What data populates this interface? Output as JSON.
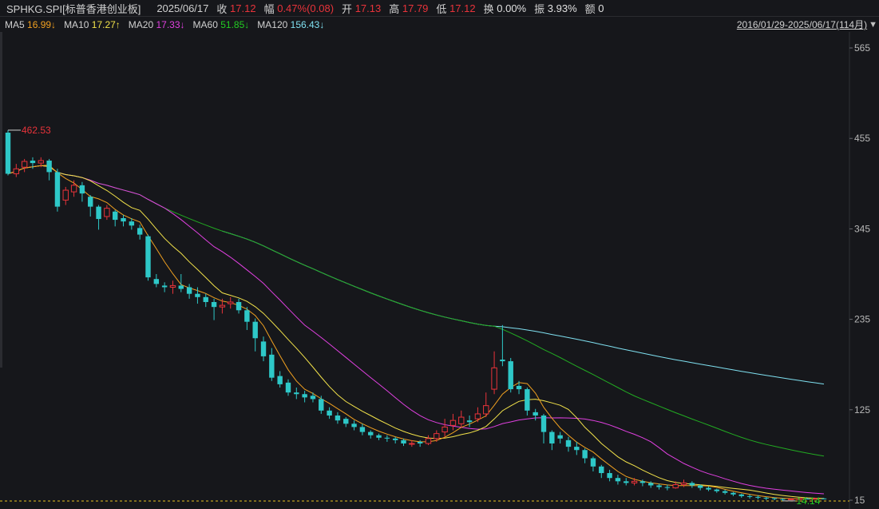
{
  "quote": {
    "symbol": "SPHKG.SPI[标普香港创业板]",
    "date": "2025/06/17",
    "close_label": "收",
    "close": "17.12",
    "change_label": "幅",
    "change": "0.47%(0.08)",
    "open_label": "开",
    "open": "17.13",
    "high_label": "高",
    "high": "17.79",
    "low_label": "低",
    "low": "17.12",
    "turnover_label": "换",
    "turnover": "0.00%",
    "amplitude_label": "振",
    "amplitude": "3.93%",
    "amount_label": "额",
    "amount": "0"
  },
  "ma": [
    {
      "label": "MA5",
      "value": "16.99↓",
      "color": "#f0a020"
    },
    {
      "label": "MA10",
      "value": "17.27↑",
      "color": "#f2e24a"
    },
    {
      "label": "MA20",
      "value": "17.33↓",
      "color": "#e040e0"
    },
    {
      "label": "MA60",
      "value": "51.85↓",
      "color": "#22cc22"
    },
    {
      "label": "MA120",
      "value": "156.43↓",
      "color": "#7fe0f0"
    }
  ],
  "range": {
    "text": "2016/01/29-2025/06/17(114月)",
    "dropdown_icon": "triangle-down-icon"
  },
  "colors": {
    "up": "#e8333a",
    "down": "#2ec8c8",
    "ma5": "#f0a020",
    "ma10": "#f2e24a",
    "ma20": "#e040e0",
    "ma60": "#22aa22",
    "ma120": "#7fe0f0",
    "ref_line": "#e8c020"
  },
  "chart_data": {
    "type": "candlestick",
    "y_ticks": [
      "565",
      "455",
      "345",
      "235",
      "125",
      "15"
    ],
    "ylim": [
      15,
      565
    ],
    "annotations": [
      {
        "text": "462.53",
        "kind": "max",
        "color": "#e8333a"
      },
      {
        "text": "14.14",
        "kind": "min",
        "color": "#22cc22"
      }
    ],
    "reference_line": 15,
    "candles": [
      [
        462,
        412,
        465,
        410
      ],
      [
        412,
        418,
        424,
        408
      ],
      [
        420,
        427,
        430,
        414
      ],
      [
        428,
        425,
        432,
        418
      ],
      [
        425,
        428,
        432,
        420
      ],
      [
        428,
        414,
        430,
        404
      ],
      [
        414,
        372,
        418,
        366
      ],
      [
        380,
        392,
        396,
        374
      ],
      [
        390,
        398,
        404,
        384
      ],
      [
        398,
        388,
        402,
        378
      ],
      [
        384,
        372,
        386,
        360
      ],
      [
        372,
        357,
        374,
        344
      ],
      [
        360,
        370,
        374,
        356
      ],
      [
        366,
        356,
        368,
        348
      ],
      [
        358,
        354,
        362,
        348
      ],
      [
        354,
        349,
        358,
        344
      ],
      [
        346,
        338,
        350,
        332
      ],
      [
        336,
        286,
        338,
        282
      ],
      [
        284,
        278,
        290,
        274
      ],
      [
        276,
        274,
        280,
        268
      ],
      [
        274,
        276,
        282,
        266
      ],
      [
        276,
        272,
        290,
        268
      ],
      [
        274,
        266,
        278,
        260
      ],
      [
        266,
        262,
        274,
        254
      ],
      [
        262,
        256,
        266,
        250
      ],
      [
        256,
        250,
        260,
        234
      ],
      [
        250,
        252,
        260,
        242
      ],
      [
        254,
        256,
        262,
        248
      ],
      [
        256,
        246,
        260,
        242
      ],
      [
        246,
        232,
        250,
        222
      ],
      [
        232,
        212,
        236,
        196
      ],
      [
        208,
        190,
        214,
        184
      ],
      [
        192,
        164,
        200,
        160
      ],
      [
        166,
        156,
        172,
        152
      ],
      [
        158,
        146,
        162,
        142
      ],
      [
        146,
        144,
        152,
        138
      ],
      [
        144,
        140,
        148,
        134
      ],
      [
        142,
        138,
        146,
        134
      ],
      [
        138,
        124,
        142,
        120
      ],
      [
        124,
        118,
        128,
        114
      ],
      [
        118,
        112,
        122,
        108
      ],
      [
        114,
        108,
        116,
        104
      ],
      [
        108,
        104,
        112,
        100
      ],
      [
        104,
        98,
        108,
        94
      ],
      [
        98,
        94,
        100,
        90
      ],
      [
        94,
        91,
        96,
        88
      ],
      [
        91,
        90,
        94,
        86
      ],
      [
        90,
        88,
        92,
        84
      ],
      [
        88,
        84,
        90,
        81
      ],
      [
        84,
        84,
        88,
        80
      ],
      [
        86,
        84,
        88,
        80
      ],
      [
        84,
        90,
        94,
        82
      ],
      [
        90,
        96,
        100,
        86
      ],
      [
        98,
        104,
        114,
        92
      ],
      [
        106,
        112,
        120,
        100
      ],
      [
        108,
        116,
        124,
        104
      ],
      [
        112,
        110,
        118,
        104
      ],
      [
        114,
        120,
        128,
        110
      ],
      [
        120,
        130,
        146,
        116
      ],
      [
        150,
        176,
        196,
        144
      ],
      [
        186,
        184,
        228,
        178
      ],
      [
        184,
        150,
        188,
        146
      ],
      [
        154,
        150,
        160,
        144
      ],
      [
        150,
        124,
        152,
        118
      ],
      [
        122,
        118,
        126,
        112
      ],
      [
        118,
        98,
        120,
        84
      ],
      [
        98,
        84,
        100,
        76
      ],
      [
        94,
        90,
        98,
        84
      ],
      [
        88,
        80,
        92,
        74
      ],
      [
        80,
        76,
        86,
        70
      ],
      [
        76,
        66,
        78,
        60
      ],
      [
        66,
        56,
        68,
        50
      ],
      [
        56,
        48,
        58,
        42
      ],
      [
        48,
        42,
        52,
        38
      ],
      [
        42,
        38,
        46,
        34
      ],
      [
        38,
        36,
        42,
        33
      ],
      [
        36,
        38,
        42,
        33
      ],
      [
        38,
        36,
        40,
        32
      ],
      [
        36,
        33,
        38,
        30
      ],
      [
        33,
        31,
        35,
        28
      ],
      [
        31,
        30,
        34,
        27
      ],
      [
        30,
        34,
        38,
        29
      ],
      [
        34,
        36,
        40,
        31
      ],
      [
        36,
        33,
        38,
        30
      ],
      [
        33,
        30,
        34,
        27
      ],
      [
        30,
        28,
        32,
        26
      ],
      [
        28,
        26,
        29,
        24
      ],
      [
        26,
        24,
        28,
        22
      ],
      [
        24,
        22,
        25,
        20
      ],
      [
        22,
        20,
        23,
        18
      ],
      [
        20,
        19,
        22,
        17
      ],
      [
        19,
        18,
        21,
        16
      ],
      [
        18,
        17.5,
        19,
        15
      ],
      [
        17.5,
        16.5,
        18.5,
        15
      ],
      [
        16.5,
        16,
        17.5,
        14.14
      ],
      [
        16,
        16.5,
        17.5,
        15.5
      ],
      [
        16.5,
        17,
        18,
        16
      ],
      [
        17,
        16.8,
        17.8,
        16.2
      ],
      [
        17,
        17.2,
        17.8,
        16.6
      ],
      [
        17.13,
        17.12,
        17.79,
        17.12
      ]
    ],
    "ma120_start_index": 26
  }
}
